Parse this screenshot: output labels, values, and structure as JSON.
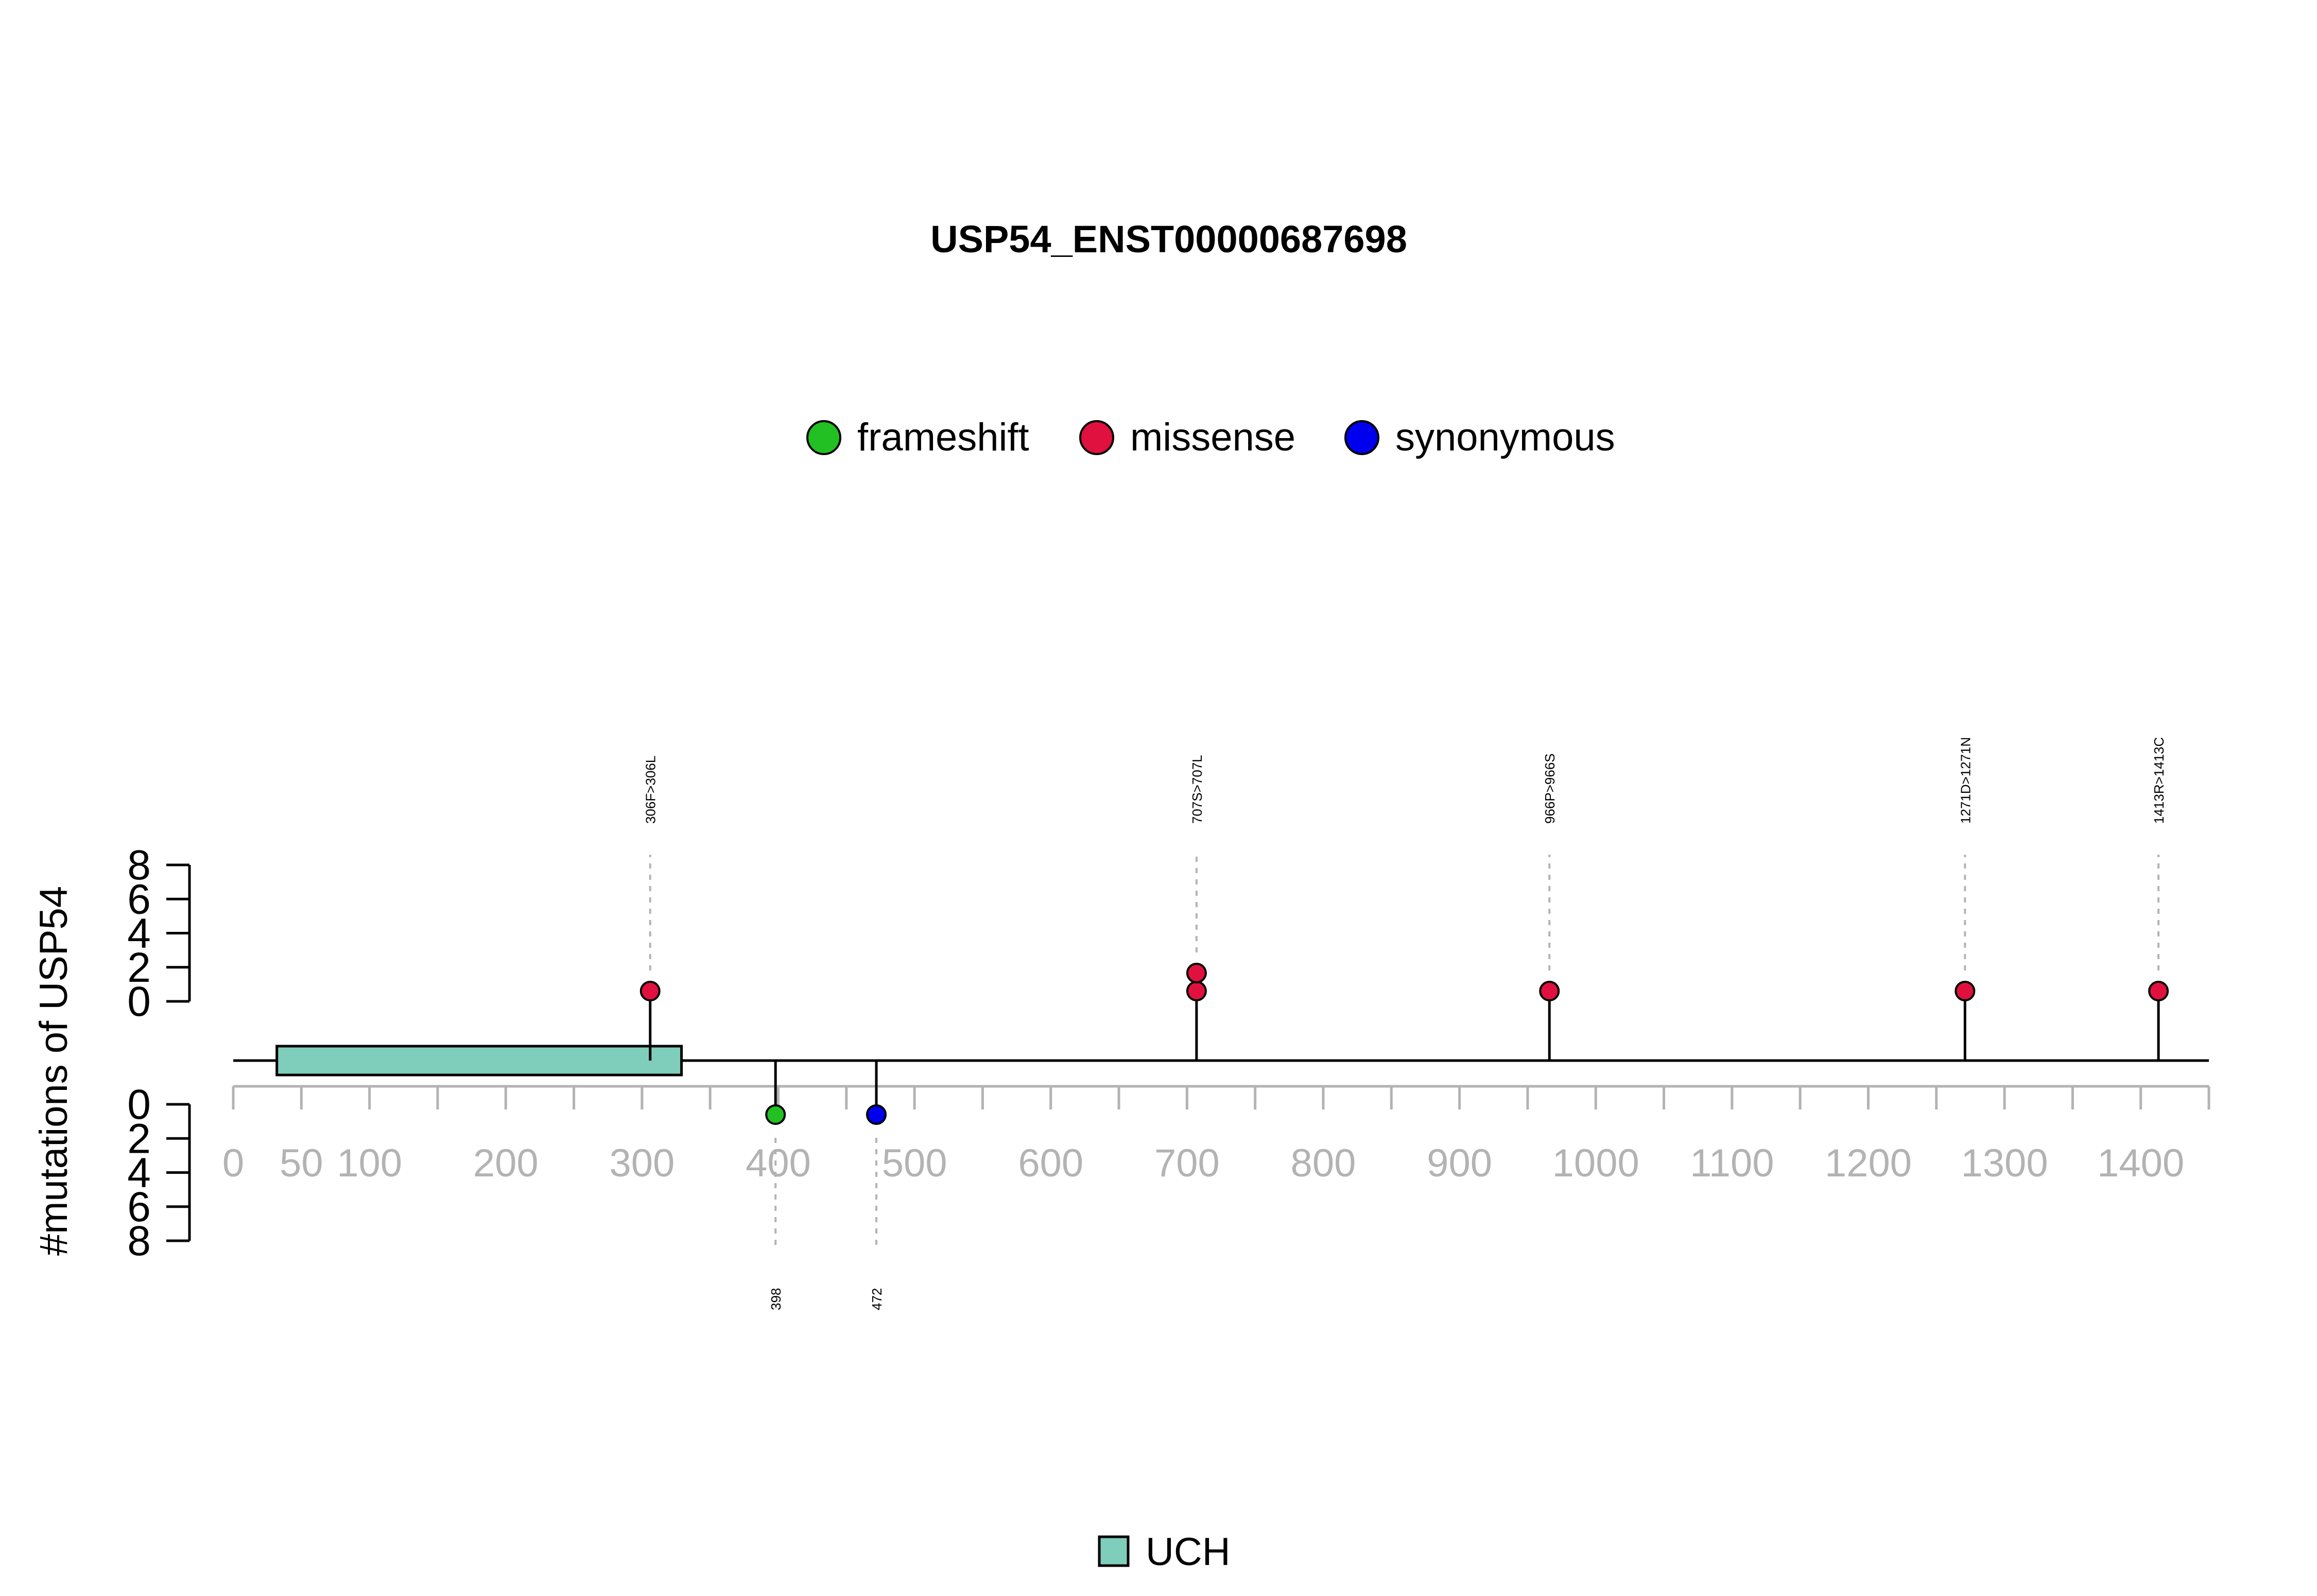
{
  "chart_data": {
    "type": "lollipop",
    "title": "USP54_ENST00000687698",
    "ylabel": "#mutations of USP54",
    "xlim": [
      0,
      1450
    ],
    "x_ticks": [
      0,
      50,
      100,
      150,
      200,
      250,
      300,
      350,
      400,
      450,
      500,
      550,
      600,
      650,
      700,
      750,
      800,
      850,
      900,
      950,
      1000,
      1050,
      1100,
      1150,
      1200,
      1250,
      1300,
      1350,
      1400,
      1450
    ],
    "x_tick_labels": [
      {
        "value": 0,
        "label": "0"
      },
      {
        "value": 50,
        "label": "50"
      },
      {
        "value": 100,
        "label": "100"
      },
      {
        "value": 200,
        "label": "200"
      },
      {
        "value": 300,
        "label": "300"
      },
      {
        "value": 400,
        "label": "400"
      },
      {
        "value": 500,
        "label": "500"
      },
      {
        "value": 600,
        "label": "600"
      },
      {
        "value": 700,
        "label": "700"
      },
      {
        "value": 800,
        "label": "800"
      },
      {
        "value": 900,
        "label": "900"
      },
      {
        "value": 1000,
        "label": "1000"
      },
      {
        "value": 1100,
        "label": "1100"
      },
      {
        "value": 1200,
        "label": "1200"
      },
      {
        "value": 1300,
        "label": "1300"
      },
      {
        "value": 1400,
        "label": "1400"
      }
    ],
    "y_ticks_top": [
      "0",
      "2",
      "4",
      "6",
      "8"
    ],
    "y_ticks_bottom": [
      "0",
      "2",
      "4",
      "6",
      "8"
    ],
    "ylim": [
      0,
      8
    ],
    "legend": [
      {
        "name": "frameshift",
        "color": "#22c022"
      },
      {
        "name": "missense",
        "color": "#e0103f"
      },
      {
        "name": "synonymous",
        "color": "#0000ee"
      }
    ],
    "domains": [
      {
        "name": "UCH",
        "start": 32,
        "end": 329,
        "color": "#7fcdbb"
      }
    ],
    "mutations_top": [
      {
        "pos": 306,
        "count": 1,
        "type": "missense",
        "label": "306F>306L"
      },
      {
        "pos": 707,
        "count": 2,
        "type": "missense",
        "label": "707S>707L"
      },
      {
        "pos": 966,
        "count": 1,
        "type": "missense",
        "label": "966P>966S"
      },
      {
        "pos": 1271,
        "count": 1,
        "type": "missense",
        "label": "1271D>1271N"
      },
      {
        "pos": 1413,
        "count": 1,
        "type": "missense",
        "label": "1413R>1413C"
      }
    ],
    "mutations_bottom": [
      {
        "pos": 398,
        "count": 1,
        "type": "frameshift",
        "label": "398"
      },
      {
        "pos": 472,
        "count": 1,
        "type": "synonymous",
        "label": "472"
      }
    ]
  }
}
